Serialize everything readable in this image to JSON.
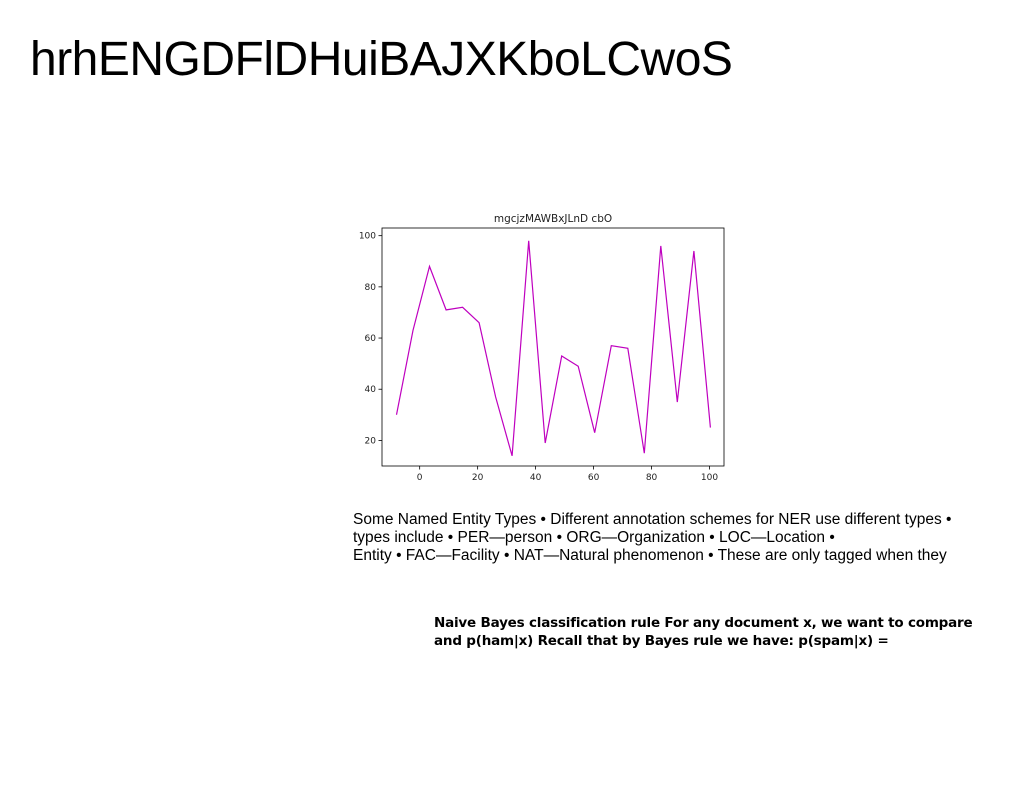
{
  "slide": {
    "title": "hrhENGDFlDHuiBAJXKboLCwoS"
  },
  "chart_data": {
    "type": "line",
    "title": "mgcjzMAWBxJLnD cbO",
    "xlabel": "",
    "ylabel": "",
    "xlim": [
      -13,
      105
    ],
    "ylim": [
      10,
      103
    ],
    "xticks": [
      0,
      20,
      40,
      60,
      80,
      100
    ],
    "yticks": [
      20,
      40,
      60,
      80,
      100
    ],
    "color": "#bf00bf",
    "grid": false,
    "series": [
      {
        "x": [
          -8,
          -2.3,
          3.4,
          9.1,
          14.8,
          20.5,
          26.2,
          31.9,
          37.6,
          43.3,
          49,
          54.7,
          60.4,
          66.1,
          71.8,
          77.5,
          83.2,
          88.9,
          94.6,
          100.3
        ],
        "values": [
          30,
          63,
          88,
          71,
          72,
          66,
          37,
          14,
          98,
          19,
          53,
          49,
          23,
          57,
          56,
          15,
          96,
          35,
          94,
          25
        ]
      }
    ]
  },
  "text_blocks": {
    "ner_lines": [
      "Some Named Entity Types • Different annotation schemes for NER use different types •",
      "types include • PER—person • ORG—Organization • LOC—Location •",
      "Entity • FAC—Facility • NAT—Natural phenomenon • These are only tagged when they"
    ],
    "bayes_lines": [
      "Naive Bayes classification rule For any document x, we want to compare",
      "and p(ham|x) Recall that by Bayes rule we have: p(spam|x) ="
    ]
  }
}
